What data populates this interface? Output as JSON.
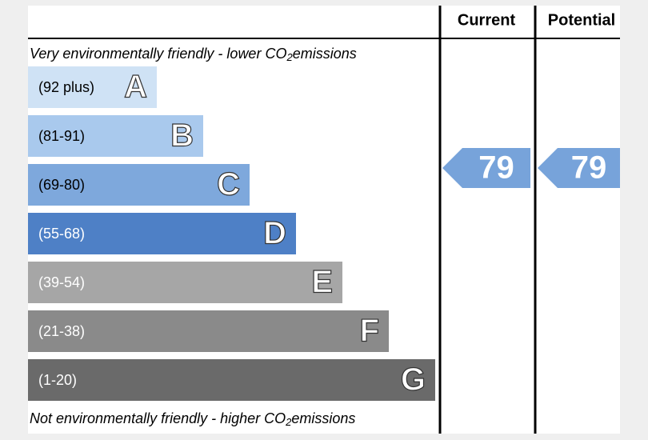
{
  "header": {
    "columns": [
      "Current",
      "Potential"
    ]
  },
  "top_note": {
    "before": "Very environmentally friendly - lower CO",
    "sub": "2",
    "after": "emissions"
  },
  "bottom_note": {
    "before": "Not environmentally friendly - higher CO",
    "sub": "2",
    "after": "emissions"
  },
  "bands": [
    {
      "range": "(92 plus)",
      "letter": "A",
      "color": "#cfe2f5"
    },
    {
      "range": "(81-91)",
      "letter": "B",
      "color": "#a9c9ed"
    },
    {
      "range": "(69-80)",
      "letter": "C",
      "color": "#7ea8dc"
    },
    {
      "range": "(55-68)",
      "letter": "D",
      "color": "#4e80c6"
    },
    {
      "range": "(39-54)",
      "letter": "E",
      "color": "#a6a6a6"
    },
    {
      "range": "(21-38)",
      "letter": "F",
      "color": "#8a8a8a"
    },
    {
      "range": "(1-20)",
      "letter": "G",
      "color": "#6a6a6a"
    }
  ],
  "ratings": [
    {
      "column": "Current",
      "value": 79,
      "color": "#77a3da"
    },
    {
      "column": "Potential",
      "value": 79,
      "color": "#77a3da"
    }
  ]
}
